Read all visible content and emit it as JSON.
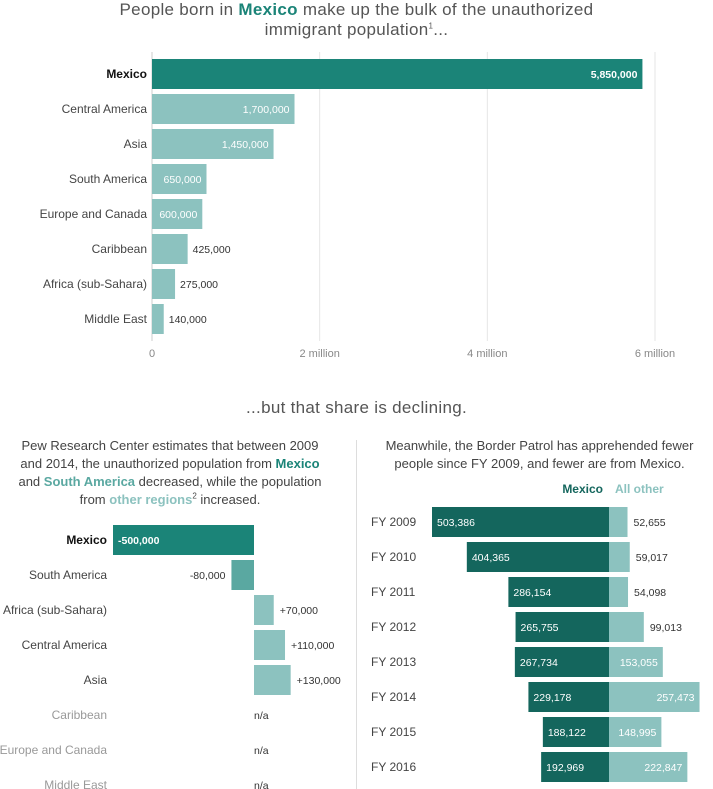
{
  "header": {
    "title_pre": "People born in ",
    "title_highlight": "Mexico",
    "title_post": " make up the bulk of the unauthorized",
    "title_line2": "immigrant population",
    "title_footnote": "1",
    "title_end": "..."
  },
  "section_title": "...but that share is declining.",
  "left_subtitle": {
    "p1": "Pew Research Center estimates that between 2009",
    "p2": "and 2014, the unauthorized population from ",
    "mexico": "Mexico",
    "p3": "and ",
    "south_america": "South America",
    "p4": " decreased, while the population",
    "p5": "from ",
    "other": "other regions",
    "footnote": "2",
    "p6": " increased."
  },
  "right_subtitle": {
    "line1": "Meanwhile, the Border Patrol has apprehended fewer",
    "line2": "people since FY 2009, and fewer are from Mexico."
  },
  "colors": {
    "mexico": "#1b8478",
    "other": "#8cc2bf",
    "south_america": "#5aa8a1",
    "mexico_dark": "#14665d",
    "na_text": "#999999"
  },
  "chart_data": [
    {
      "type": "bar",
      "orientation": "horizontal",
      "categories": [
        "Mexico",
        "Central America",
        "Asia",
        "South America",
        "Europe and Canada",
        "Caribbean",
        "Africa (sub-Sahara)",
        "Middle East"
      ],
      "values": [
        5850000,
        1700000,
        1450000,
        650000,
        600000,
        425000,
        275000,
        140000
      ],
      "value_labels": [
        "5,850,000",
        "1,700,000",
        "1,450,000",
        "650,000",
        "600,000",
        "425,000",
        "275,000",
        "140,000"
      ],
      "xlim": [
        0,
        6000000
      ],
      "ticks": [
        0,
        2000000,
        4000000,
        6000000
      ],
      "tick_labels": [
        "0",
        "2 million",
        "4 million",
        "6 million"
      ],
      "grid": true
    },
    {
      "type": "bar",
      "orientation": "horizontal",
      "categories": [
        "Mexico",
        "South America",
        "Africa (sub-Sahara)",
        "Central America",
        "Asia",
        "Caribbean",
        "Europe and Canada",
        "Middle East"
      ],
      "values": [
        -500000,
        -80000,
        70000,
        110000,
        130000,
        null,
        null,
        null
      ],
      "value_labels": [
        "-500,000",
        "-80,000",
        "+70,000",
        "+110,000",
        "+130,000",
        "n/a",
        "n/a",
        "n/a"
      ]
    },
    {
      "type": "bar",
      "orientation": "horizontal",
      "stacked": true,
      "categories": [
        "FY 2009",
        "FY 2010",
        "FY 2011",
        "FY 2012",
        "FY 2013",
        "FY 2014",
        "FY 2015",
        "FY 2016"
      ],
      "series": [
        {
          "name": "Mexico",
          "values": [
            503386,
            404365,
            286154,
            265755,
            267734,
            229178,
            188122,
            192969
          ],
          "labels": [
            "503,386",
            "404,365",
            "286,154",
            "265,755",
            "267,734",
            "229,178",
            "188,122",
            "192,969"
          ]
        },
        {
          "name": "All other",
          "values": [
            52655,
            59017,
            54098,
            99013,
            153055,
            257473,
            148995,
            222847
          ],
          "labels": [
            "52,655",
            "59,017",
            "54,098",
            "99,013",
            "153,055",
            "257,473",
            "148,995",
            "222,847"
          ]
        }
      ]
    }
  ]
}
